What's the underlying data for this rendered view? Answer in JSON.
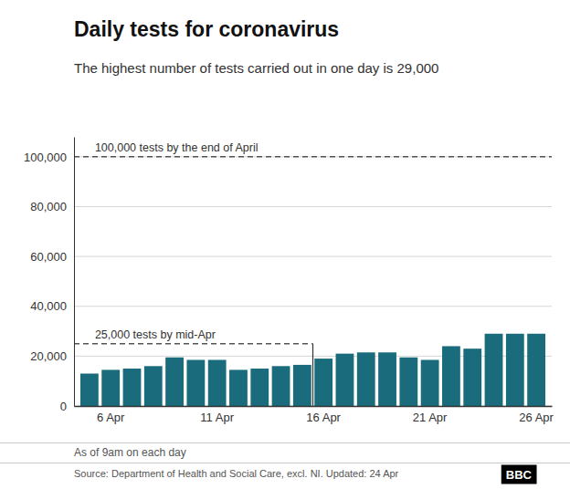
{
  "chart_data": {
    "type": "bar",
    "title": "Daily tests for coronavirus",
    "subtitle": "The highest number of tests carried out in one day is 29,000",
    "categories": [
      null,
      "6 Apr",
      null,
      null,
      null,
      null,
      "11 Apr",
      null,
      null,
      null,
      null,
      "16 Apr",
      null,
      null,
      null,
      null,
      "21 Apr",
      null,
      null,
      null,
      null,
      "26 Apr"
    ],
    "values": [
      13000,
      14500,
      15000,
      16000,
      19500,
      18500,
      18500,
      14500,
      15000,
      16000,
      16500,
      19000,
      21000,
      21500,
      21500,
      19500,
      18500,
      24000,
      23000,
      29000,
      29000,
      29000
    ],
    "color": "#1a6b7c",
    "ylim": [
      0,
      108000
    ],
    "yticks": [
      0,
      {
        "value": 20000,
        "label": "20,000"
      },
      {
        "value": 40000,
        "label": "40,000"
      },
      {
        "value": 60000,
        "label": "60,000"
      },
      {
        "value": 80000,
        "label": "80,000"
      },
      {
        "value": 100000,
        "label": "100,000"
      }
    ],
    "grid": true,
    "reference_lines": [
      {
        "value": 100000,
        "label": "100,000 tests by the end of April"
      },
      {
        "value": 25000,
        "label": "25,000 tests by mid-Apr",
        "end_before_category": "16 Apr"
      }
    ],
    "footer_note": "As of 9am on each day",
    "source": "Source: Department of Health and Social Care, excl. NI. Updated: 24 Apr",
    "logo": "BBC"
  }
}
